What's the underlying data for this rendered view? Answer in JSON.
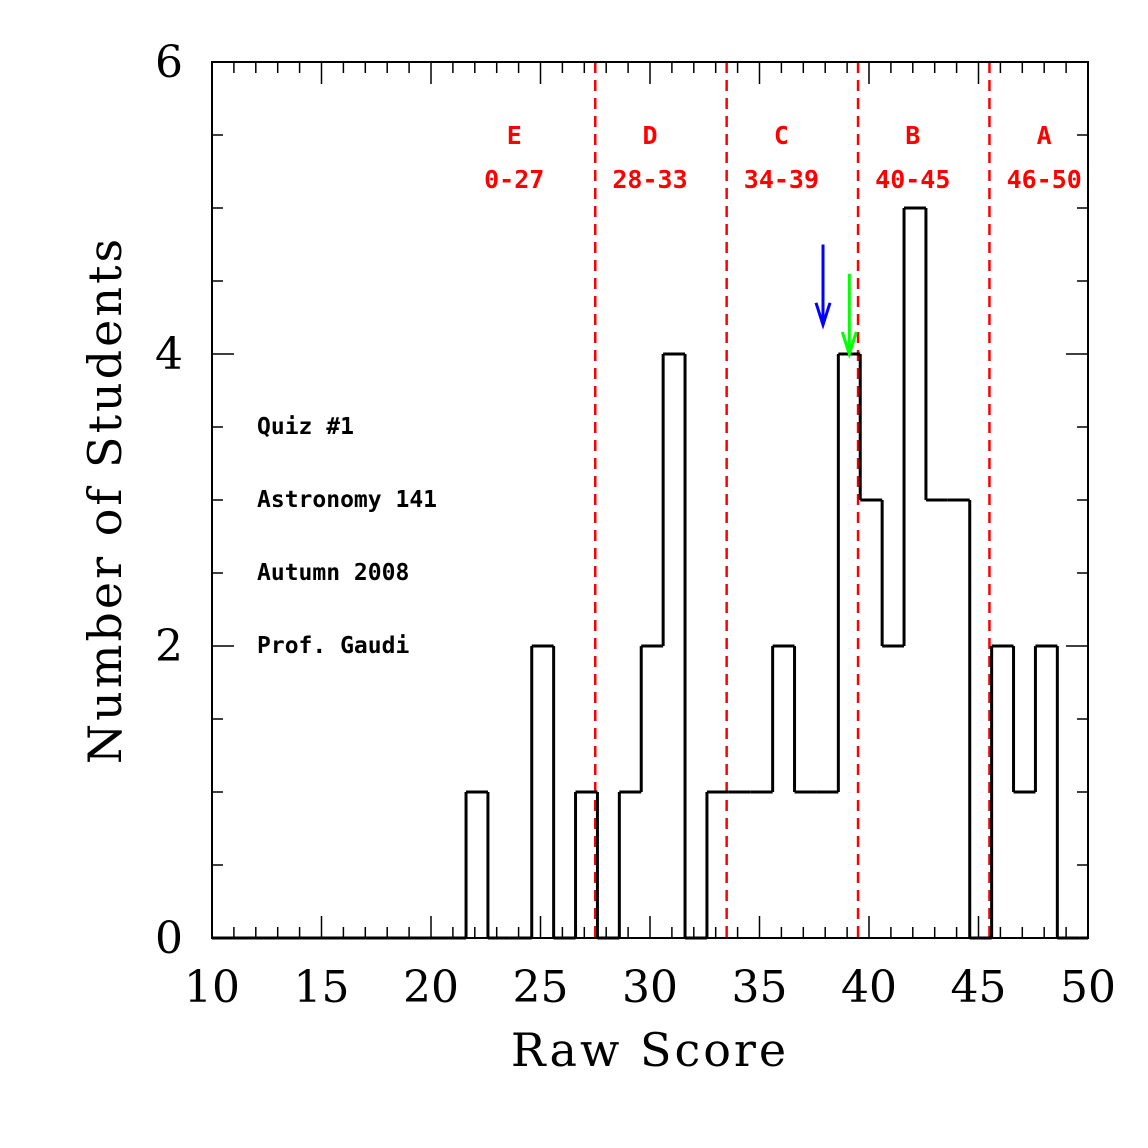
{
  "chart_data": {
    "type": "histogram",
    "xlabel": "Raw Score",
    "ylabel": "Number of Students",
    "xlim": [
      10,
      50
    ],
    "ylim": [
      0,
      6
    ],
    "x_ticks": [
      "10",
      "15",
      "20",
      "25",
      "30",
      "35",
      "40",
      "45",
      "50"
    ],
    "y_ticks": [
      "0",
      "2",
      "4",
      "6"
    ],
    "bin_width": 1,
    "bins": [
      {
        "left": 10,
        "value": 0
      },
      {
        "left": 11,
        "value": 0
      },
      {
        "left": 12,
        "value": 0
      },
      {
        "left": 13,
        "value": 0
      },
      {
        "left": 14,
        "value": 0
      },
      {
        "left": 15,
        "value": 0
      },
      {
        "left": 16,
        "value": 0
      },
      {
        "left": 17,
        "value": 0
      },
      {
        "left": 18,
        "value": 0
      },
      {
        "left": 19,
        "value": 0
      },
      {
        "left": 20,
        "value": 0
      },
      {
        "left": 21,
        "value": 0
      },
      {
        "left": 21.6,
        "value": 1
      },
      {
        "left": 22.6,
        "value": 0
      },
      {
        "left": 23.6,
        "value": 0
      },
      {
        "left": 24.6,
        "value": 2
      },
      {
        "left": 25.6,
        "value": 0
      },
      {
        "left": 26.6,
        "value": 1
      },
      {
        "left": 27.6,
        "value": 0
      },
      {
        "left": 28.6,
        "value": 1
      },
      {
        "left": 29.6,
        "value": 2
      },
      {
        "left": 30.6,
        "value": 4
      },
      {
        "left": 31.6,
        "value": 0
      },
      {
        "left": 32.6,
        "value": 1
      },
      {
        "left": 33.6,
        "value": 1
      },
      {
        "left": 34.6,
        "value": 1
      },
      {
        "left": 35.6,
        "value": 2
      },
      {
        "left": 36.6,
        "value": 1
      },
      {
        "left": 37.6,
        "value": 1
      },
      {
        "left": 38.6,
        "value": 4
      },
      {
        "left": 39.6,
        "value": 3
      },
      {
        "left": 40.6,
        "value": 2
      },
      {
        "left": 41.6,
        "value": 5
      },
      {
        "left": 42.6,
        "value": 3
      },
      {
        "left": 43.6,
        "value": 3
      },
      {
        "left": 44.6,
        "value": 0
      },
      {
        "left": 45.6,
        "value": 2
      },
      {
        "left": 46.6,
        "value": 1
      },
      {
        "left": 47.6,
        "value": 2
      },
      {
        "left": 48.6,
        "value": 0
      },
      {
        "left": 49.6,
        "value": 0
      }
    ],
    "grade_boundaries": [
      27.5,
      33.5,
      39.5,
      45.5
    ],
    "grade_bands": [
      {
        "letter": "E",
        "range": "0-27",
        "center": 23.8
      },
      {
        "letter": "D",
        "range": "28-33",
        "center": 30.0
      },
      {
        "letter": "C",
        "range": "34-39",
        "center": 36.0
      },
      {
        "letter": "B",
        "range": "40-45",
        "center": 42.0
      },
      {
        "letter": "A",
        "range": "46-50",
        "center": 48.0
      }
    ],
    "markers": [
      {
        "x": 37.9,
        "y_top": 4.75,
        "y_tip": 4.2,
        "color": "#0000ff"
      },
      {
        "x": 39.1,
        "y_top": 4.55,
        "y_tip": 4.0,
        "color": "#00ff00"
      }
    ],
    "notes": [
      "Quiz #1",
      "Astronomy 141",
      "Autumn 2008",
      "Prof. Gaudi"
    ],
    "colors": {
      "axis": "#000000",
      "boundary": "#ff0000"
    }
  }
}
